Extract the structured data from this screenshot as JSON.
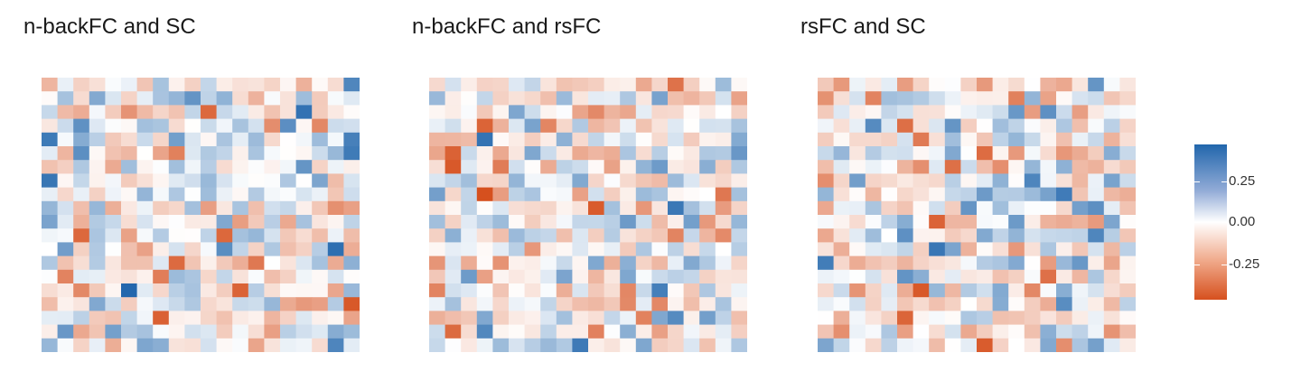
{
  "chart_data": [
    {
      "type": "heatmap",
      "title": "n-backFC and SC",
      "rows": 20,
      "cols": 20,
      "seed": 11
    },
    {
      "type": "heatmap",
      "title": "n-backFC and rsFC",
      "rows": 20,
      "cols": 20,
      "seed": 23
    },
    {
      "type": "heatmap",
      "title": "rsFC and SC",
      "rows": 20,
      "cols": 20,
      "seed": 37
    }
  ],
  "legend": {
    "ticks": [
      "0.25",
      "0.00",
      "-0.25"
    ],
    "range": [
      -0.45,
      0.45
    ],
    "colors": {
      "high": "#2166ac",
      "mid": "#ffffff",
      "low": "#d6501e"
    }
  }
}
